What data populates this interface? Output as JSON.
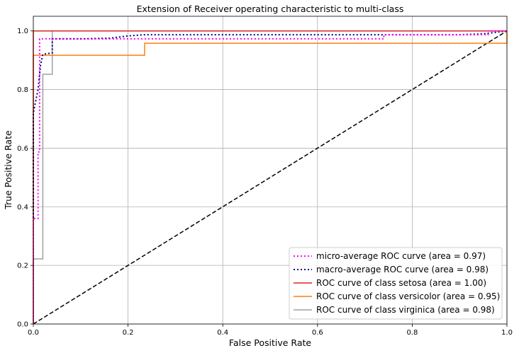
{
  "chart_data": {
    "type": "line",
    "title": "Extension of Receiver operating characteristic to multi-class",
    "xlabel": "False Positive Rate",
    "ylabel": "True Positive Rate",
    "xlim": [
      0.0,
      1.0
    ],
    "ylim": [
      0.0,
      1.05
    ],
    "grid": true,
    "legend_position": "lower-right",
    "xticks": [
      "0.0",
      "0.2",
      "0.4",
      "0.6",
      "0.8",
      "1.0"
    ],
    "yticks": [
      "0.0",
      "0.2",
      "0.4",
      "0.6",
      "0.8",
      "1.0"
    ],
    "series": [
      {
        "name": "micro-average ROC curve (area = 0.97)",
        "color": "#ff00ff",
        "style": "dotted",
        "x": [
          0,
          0.0,
          0.01,
          0.01,
          0.0133,
          0.0133,
          0.02,
          0.02,
          0.74,
          0.74,
          0.96,
          0.96,
          1.0
        ],
        "y": [
          0,
          0.36,
          0.36,
          0.587,
          0.587,
          0.973,
          0.973,
          0.973,
          0.973,
          0.987,
          0.987,
          1.0,
          1.0
        ]
      },
      {
        "name": "macro-average ROC curve (area = 0.98)",
        "color": "#000080",
        "style": "dotted",
        "x": [
          0,
          0.0,
          0.01,
          0.015,
          0.02,
          0.04,
          0.04,
          0.06,
          0.1,
          0.16,
          0.2,
          0.235,
          0.3,
          0.5,
          0.74,
          0.9,
          0.95,
          1.0
        ],
        "y": [
          0.0,
          0.72,
          0.8,
          0.88,
          0.92,
          0.925,
          0.973,
          0.973,
          0.973,
          0.975,
          0.983,
          0.987,
          0.987,
          0.987,
          0.987,
          0.987,
          0.99,
          1.0
        ]
      },
      {
        "name": "ROC curve of class setosa (area = 1.00)",
        "color": "#d62728",
        "style": "solid",
        "x": [
          0.0,
          0.0,
          1.0
        ],
        "y": [
          0.0,
          1.0,
          1.0
        ]
      },
      {
        "name": "ROC curve of class versicolor (area = 0.95)",
        "color": "#ff7f0e",
        "style": "solid",
        "x": [
          0.0,
          0.0,
          0.235,
          0.235,
          1.0,
          1.0
        ],
        "y": [
          0.0,
          0.917,
          0.917,
          0.958,
          0.958,
          1.0
        ]
      },
      {
        "name": "ROC curve of class virginica (area = 0.98)",
        "color": "#a0a0a0",
        "style": "solid",
        "x": [
          0.0,
          0.0,
          0.02,
          0.02,
          0.04,
          0.04,
          1.0
        ],
        "y": [
          0.0,
          0.222,
          0.222,
          0.852,
          0.852,
          1.0,
          1.0
        ]
      },
      {
        "name": "",
        "color": "#000000",
        "style": "dashed",
        "x": [
          0.0,
          1.0
        ],
        "y": [
          0.0,
          1.0
        ]
      }
    ]
  }
}
